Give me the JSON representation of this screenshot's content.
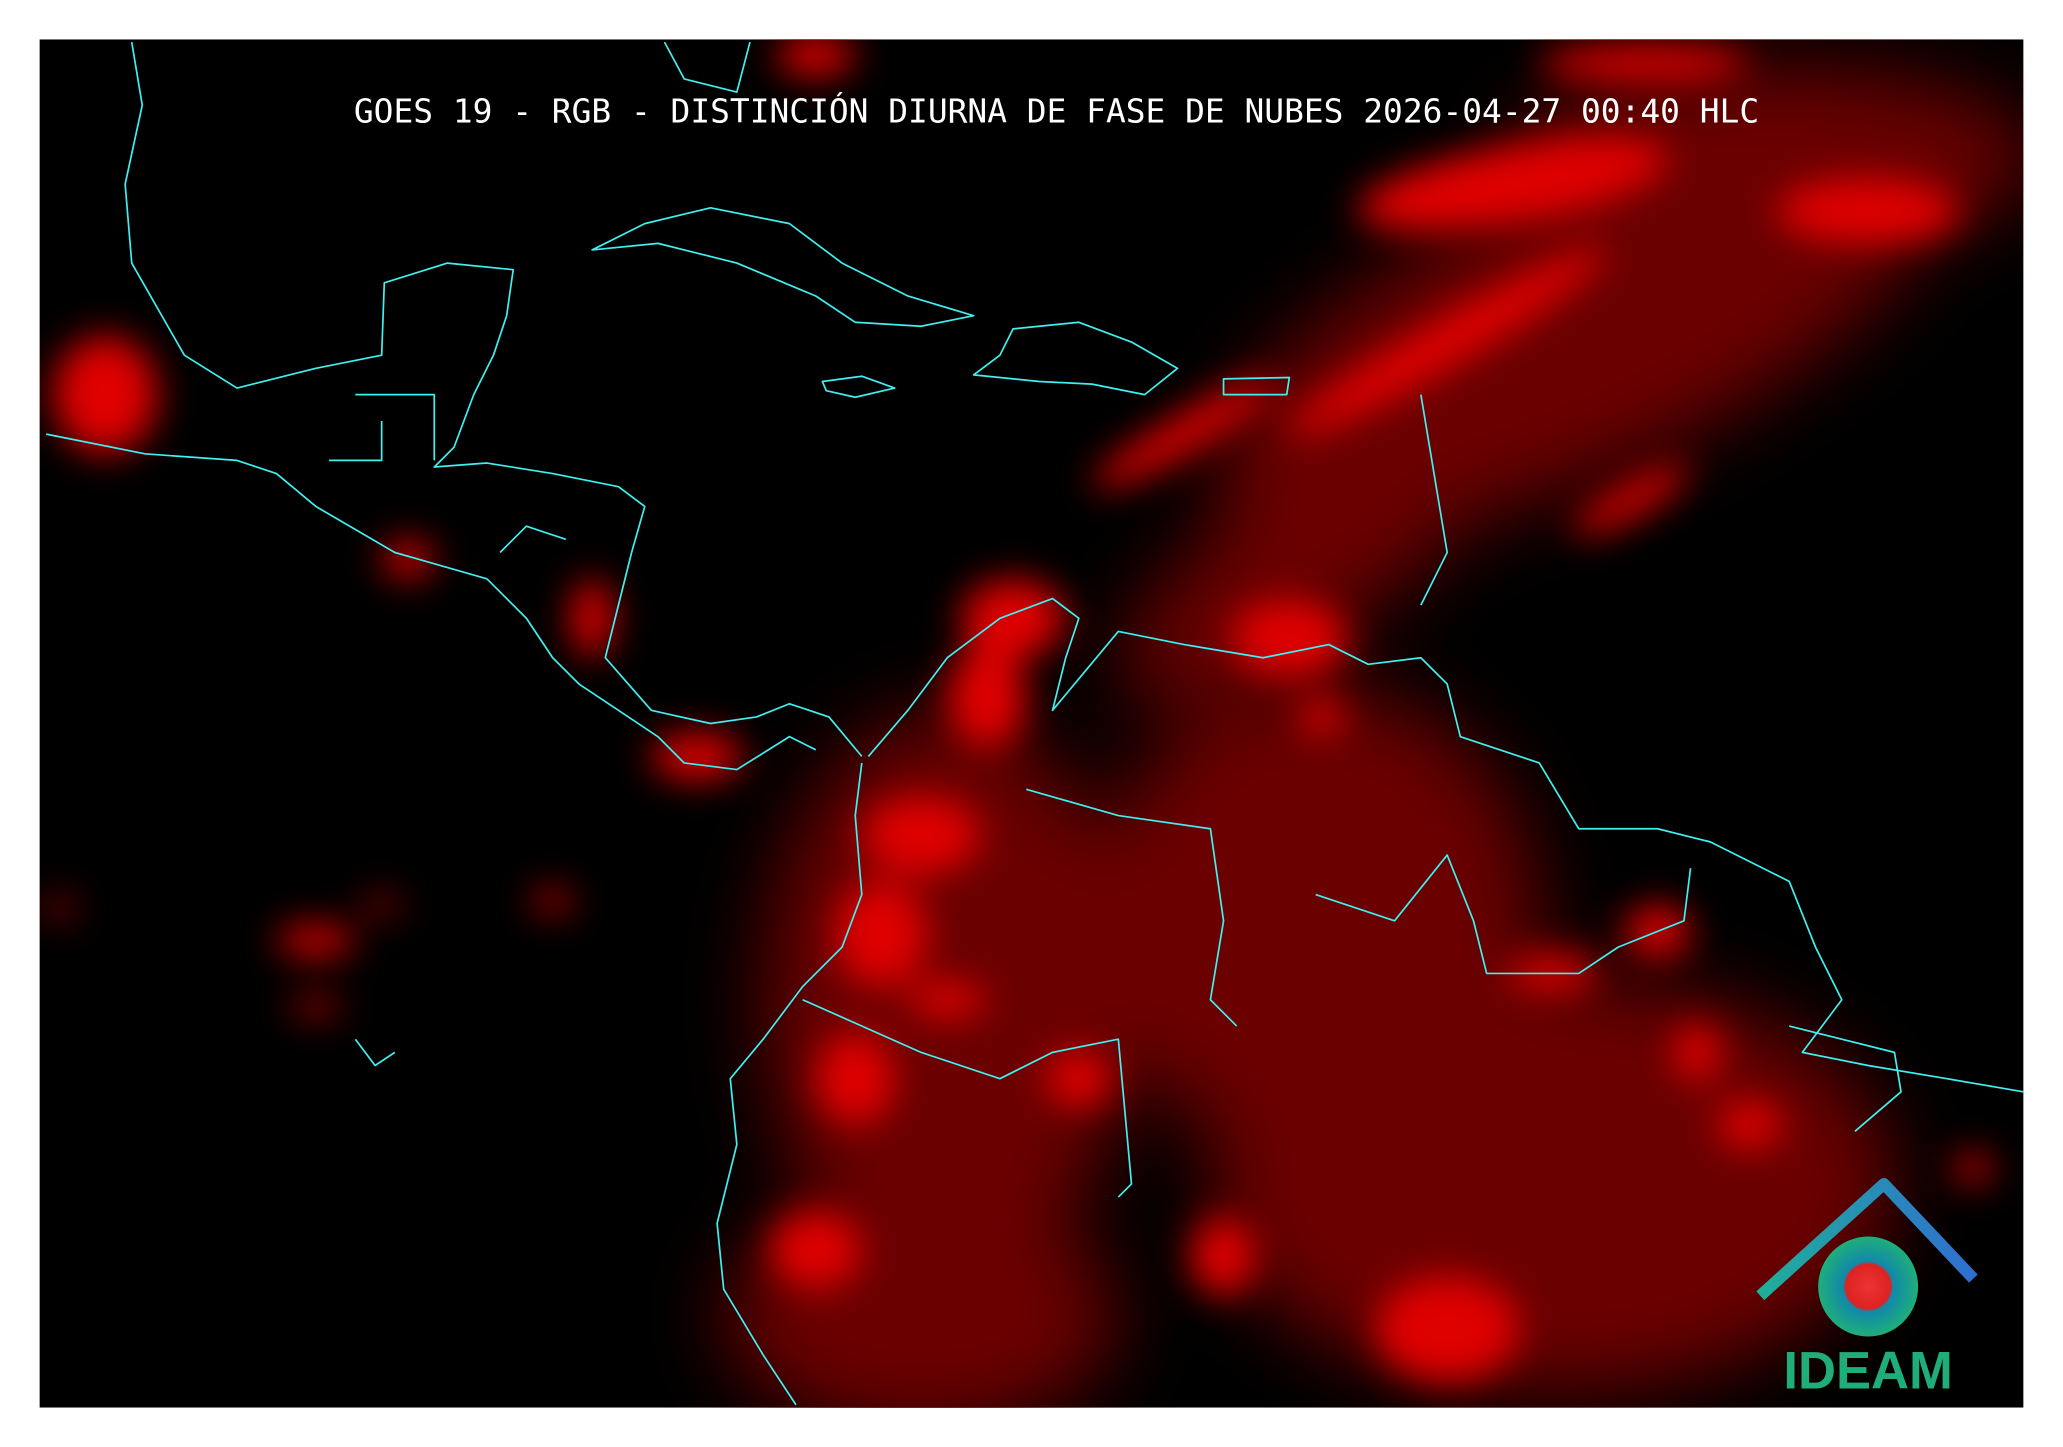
{
  "title": "GOES 19 - RGB - DISTINCIÓN DIURNA DE FASE DE NUBES 2026-04-27 00:40 HLC",
  "logo": {
    "text": "IDEAM"
  }
}
